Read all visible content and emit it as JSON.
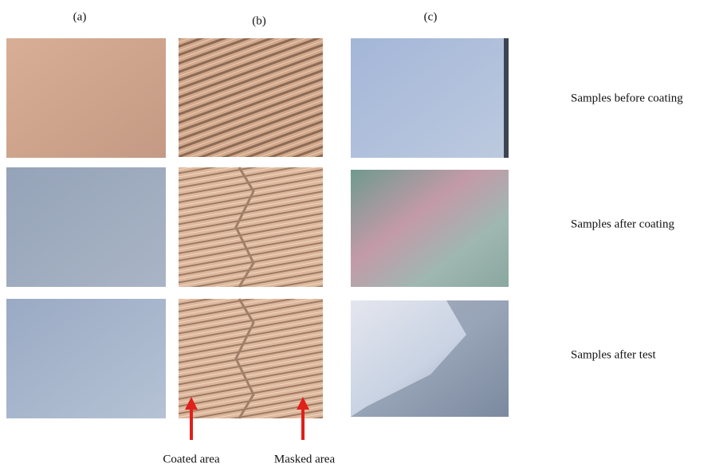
{
  "column_labels": [
    "(a)",
    "(b)",
    "(c)"
  ],
  "row_labels": [
    "Samples before coating",
    "Samples after coating",
    "Samples after test"
  ],
  "annotations": [
    "Coated area",
    "Masked area"
  ]
}
